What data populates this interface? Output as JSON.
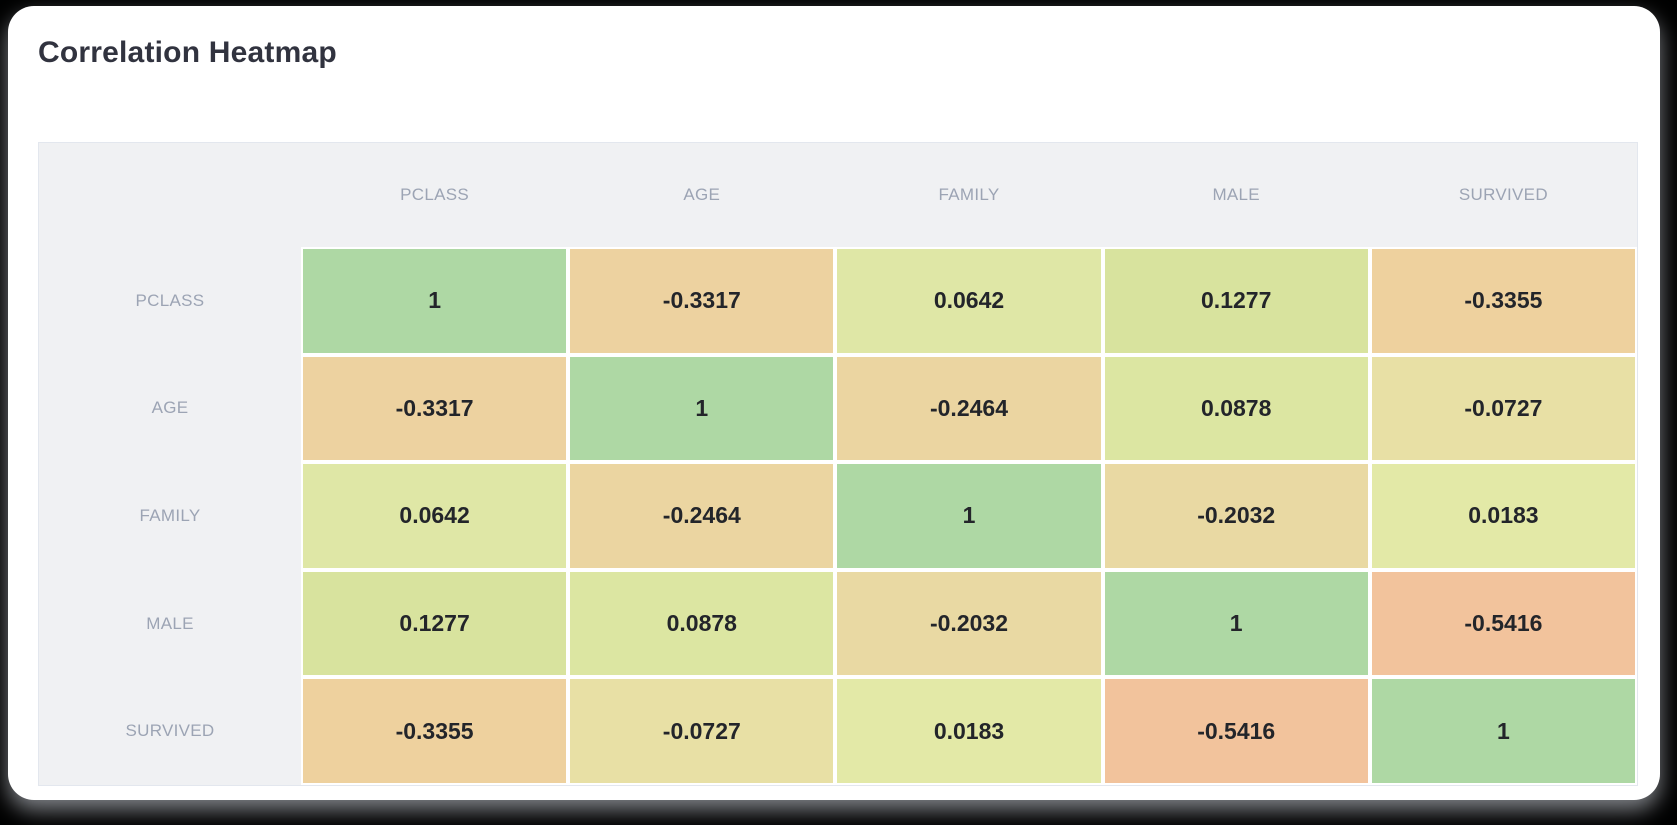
{
  "page": {
    "title": "Correlation Heatmap"
  },
  "chart_data": {
    "type": "heatmap",
    "title": "Correlation Heatmap",
    "x_labels": [
      "PCLASS",
      "AGE",
      "FAMILY",
      "MALE",
      "SURVIVED"
    ],
    "y_labels": [
      "PCLASS",
      "AGE",
      "FAMILY",
      "MALE",
      "SURVIVED"
    ],
    "matrix": [
      [
        1,
        -0.3317,
        0.0642,
        0.1277,
        -0.3355
      ],
      [
        -0.3317,
        1,
        -0.2464,
        0.0878,
        -0.0727
      ],
      [
        0.0642,
        -0.2464,
        1,
        -0.2032,
        0.0183
      ],
      [
        0.1277,
        0.0878,
        -0.2032,
        1,
        -0.5416
      ],
      [
        -0.3355,
        -0.0727,
        0.0183,
        -0.5416,
        1
      ]
    ],
    "cell_colors": [
      [
        "#aed8a4",
        "#edd2a0",
        "#dfe7a6",
        "#d8e39e",
        "#eed19e"
      ],
      [
        "#edd2a0",
        "#aed8a4",
        "#ebd5a1",
        "#dce6a2",
        "#e8e0a5"
      ],
      [
        "#dfe7a6",
        "#ebd5a1",
        "#aed8a4",
        "#e9d9a3",
        "#e3e9a7"
      ],
      [
        "#d8e39e",
        "#dce6a2",
        "#e9d9a3",
        "#aed8a4",
        "#f2c39c"
      ],
      [
        "#eed19e",
        "#e8e0a5",
        "#e3e9a7",
        "#f2c39c",
        "#aed8a4"
      ]
    ],
    "value_range": [
      -1,
      1
    ],
    "colormap": "red-yellow-green",
    "legend": "none",
    "grid": "off"
  },
  "colors": {
    "page_bg": "#000000",
    "card_bg": "#ffffff",
    "panel_bg": "#f0f1f3",
    "panel_border": "#e3e7ee",
    "title_text": "#31333f",
    "header_text": "#9ca4b4",
    "value_text": "#23252a",
    "diagonal_green": "#aed8a4",
    "strong_negative_salmon": "#f2c39c"
  }
}
